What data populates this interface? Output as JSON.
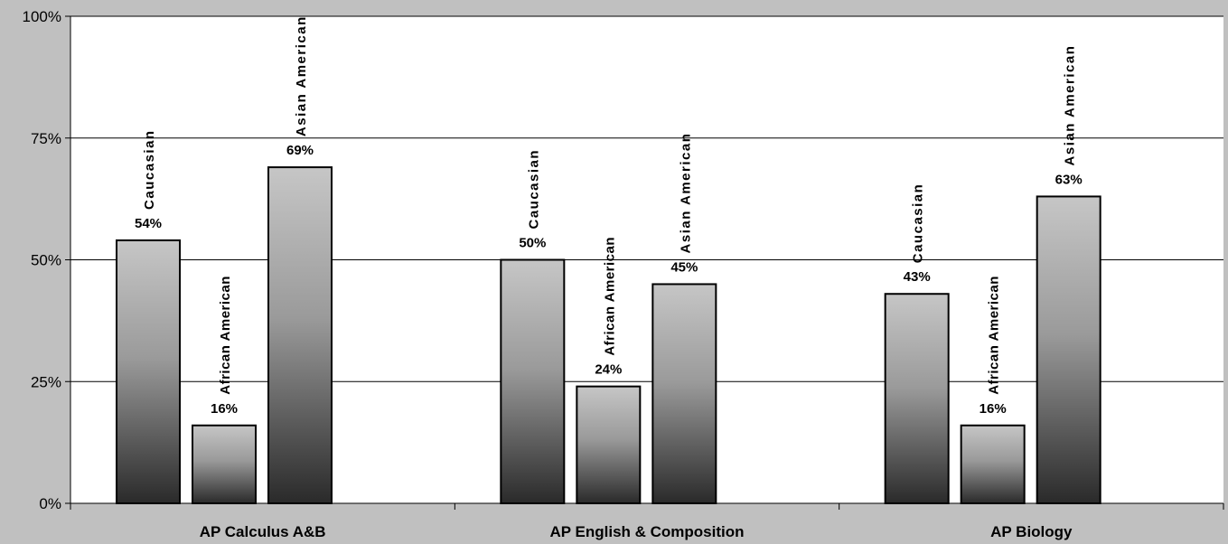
{
  "chart_data": {
    "type": "bar",
    "title": "",
    "xlabel": "",
    "ylabel": "",
    "ylim": [
      0,
      100
    ],
    "yticks": [
      "0%",
      "25%",
      "50%",
      "75%",
      "100%"
    ],
    "categories": [
      "AP Calculus A&B",
      "AP English & Composition",
      "AP Biology"
    ],
    "series": [
      {
        "name": "Caucasian",
        "values": [
          54,
          50,
          43
        ]
      },
      {
        "name": "African American",
        "values": [
          16,
          24,
          16
        ]
      },
      {
        "name": "Asian American",
        "values": [
          69,
          45,
          63
        ]
      }
    ],
    "data_labels": [
      [
        "54%",
        "16%",
        "69%"
      ],
      [
        "50%",
        "24%",
        "45%"
      ],
      [
        "43%",
        "16%",
        "63%"
      ]
    ],
    "grid": true,
    "legend": "none"
  },
  "colors": {
    "page_background": "#c0c0c0",
    "plot_background": "#ffffff",
    "bar_light": "#c4c4c4",
    "bar_dark": "#2e2e2e"
  }
}
